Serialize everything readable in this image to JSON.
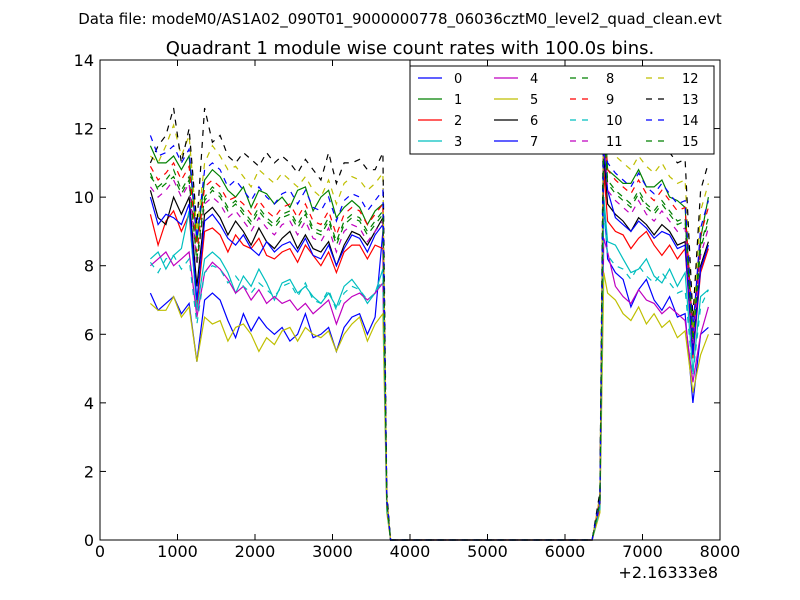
{
  "chart_data": {
    "type": "line",
    "suptitle": "Data file: modeM0/AS1A02_090T01_9000000778_06036cztM0_level2_quad_clean.evt",
    "title": "Quadrant 1 module wise count rates with 100.0s bins.",
    "xlabel": "",
    "ylabel": "",
    "xlim": [
      0,
      8000
    ],
    "ylim": [
      0,
      14
    ],
    "xticks": [
      0,
      1000,
      2000,
      3000,
      4000,
      5000,
      6000,
      7000,
      8000
    ],
    "yticks": [
      0,
      2,
      4,
      6,
      8,
      10,
      12,
      14
    ],
    "x_offset_label": "+2.16333e8",
    "legend_position": "top-right",
    "legend_columns": 4,
    "x": [
      650,
      750,
      850,
      950,
      1050,
      1150,
      1250,
      1350,
      1450,
      1550,
      1650,
      1750,
      1850,
      1950,
      2050,
      2150,
      2250,
      2350,
      2450,
      2550,
      2650,
      2750,
      2850,
      2950,
      3050,
      3150,
      3250,
      3350,
      3450,
      3550,
      3650,
      3700,
      3750,
      3800,
      3850,
      6350,
      6450,
      6500,
      6550,
      6650,
      6750,
      6850,
      6950,
      7050,
      7150,
      7250,
      7350,
      7450,
      7550,
      7650,
      7750,
      7850
    ],
    "series": [
      {
        "name": "0",
        "color": "#0000ff",
        "dash": "solid",
        "values": [
          7.2,
          6.7,
          6.9,
          7.1,
          6.6,
          6.9,
          5.2,
          7.0,
          7.2,
          7.0,
          6.4,
          5.9,
          6.6,
          6.1,
          6.5,
          6.2,
          6.0,
          6.2,
          5.8,
          6.0,
          6.6,
          5.9,
          6.0,
          6.2,
          5.5,
          6.2,
          6.5,
          6.6,
          6.0,
          6.5,
          9.0,
          1.0,
          0,
          0,
          0,
          0,
          1.0,
          10.0,
          8.2,
          7.8,
          7.6,
          6.8,
          7.3,
          7.6,
          7.0,
          6.7,
          7.1,
          6.5,
          6.6,
          4.0,
          6.0,
          6.2
        ]
      },
      {
        "name": "1",
        "color": "#008000",
        "dash": "solid",
        "values": [
          11.5,
          11.0,
          11.0,
          11.2,
          10.8,
          11.2,
          8.7,
          10.5,
          10.8,
          10.6,
          10.2,
          10.0,
          10.3,
          9.7,
          10.2,
          10.1,
          9.8,
          10.0,
          9.7,
          10.2,
          10.3,
          9.6,
          10.0,
          10.2,
          9.4,
          9.7,
          9.9,
          9.7,
          9.2,
          9.6,
          9.8,
          1.2,
          0,
          0,
          0,
          0,
          1.2,
          12.8,
          10.8,
          10.6,
          10.4,
          10.4,
          10.8,
          10.3,
          10.3,
          10.5,
          10.0,
          9.9,
          9.7,
          6.0,
          8.8,
          10.0
        ]
      },
      {
        "name": "2",
        "color": "#ff0000",
        "dash": "solid",
        "values": [
          9.5,
          8.6,
          9.3,
          9.6,
          9.0,
          9.5,
          6.8,
          9.0,
          9.1,
          8.9,
          8.4,
          8.9,
          8.6,
          8.5,
          8.8,
          8.3,
          8.2,
          8.4,
          8.5,
          8.1,
          8.6,
          8.3,
          8.0,
          8.4,
          7.8,
          8.4,
          8.6,
          8.6,
          8.2,
          8.6,
          8.5,
          1.0,
          0,
          0,
          0,
          0,
          1.0,
          10.8,
          9.3,
          9.0,
          8.9,
          8.5,
          8.8,
          9.0,
          8.6,
          8.3,
          8.6,
          8.2,
          8.5,
          5.3,
          7.8,
          8.5
        ]
      },
      {
        "name": "3",
        "color": "#00bfbf",
        "dash": "solid",
        "values": [
          8.2,
          8.4,
          7.9,
          8.3,
          8.5,
          9.6,
          6.7,
          8.2,
          8.4,
          8.2,
          7.8,
          7.2,
          7.7,
          7.4,
          7.9,
          7.5,
          7.0,
          7.5,
          7.6,
          7.2,
          7.4,
          7.1,
          6.9,
          7.2,
          6.8,
          7.4,
          7.6,
          7.3,
          6.9,
          7.2,
          7.9,
          1.0,
          0,
          0,
          0,
          0,
          1.0,
          10.0,
          8.7,
          8.6,
          8.2,
          7.8,
          7.9,
          8.2,
          7.7,
          7.5,
          7.9,
          7.4,
          7.8,
          4.9,
          7.1,
          7.3
        ]
      },
      {
        "name": "4",
        "color": "#bf00bf",
        "dash": "solid",
        "values": [
          8.0,
          8.2,
          8.4,
          8.0,
          8.2,
          8.4,
          6.5,
          7.8,
          8.1,
          7.9,
          7.6,
          7.2,
          7.4,
          7.0,
          7.3,
          6.9,
          7.1,
          6.9,
          7.0,
          6.7,
          6.9,
          6.6,
          6.8,
          7.0,
          6.3,
          6.9,
          7.1,
          7.2,
          7.0,
          7.2,
          7.5,
          0.9,
          0,
          0,
          0,
          0,
          0.9,
          8.8,
          8.4,
          7.4,
          7.1,
          6.9,
          7.3,
          7.0,
          6.9,
          6.6,
          6.8,
          6.6,
          6.4,
          4.6,
          6.0,
          6.8
        ]
      },
      {
        "name": "5",
        "color": "#bfbf00",
        "dash": "solid",
        "values": [
          6.9,
          6.7,
          6.7,
          7.1,
          6.5,
          6.8,
          5.2,
          6.5,
          6.3,
          6.4,
          5.8,
          6.2,
          6.3,
          6.0,
          5.5,
          5.9,
          5.7,
          6.1,
          6.2,
          5.8,
          6.2,
          6.0,
          5.9,
          6.1,
          5.5,
          6.0,
          6.3,
          6.5,
          5.8,
          6.3,
          6.6,
          0.8,
          0,
          0,
          0,
          0,
          0.8,
          7.8,
          7.2,
          7.0,
          6.6,
          6.4,
          6.8,
          6.3,
          6.6,
          6.2,
          6.4,
          5.9,
          6.1,
          4.3,
          5.4,
          6.0
        ]
      },
      {
        "name": "6",
        "color": "#000000",
        "dash": "solid",
        "values": [
          10.2,
          9.4,
          9.2,
          10.0,
          9.5,
          10.0,
          7.4,
          9.5,
          9.7,
          9.4,
          8.9,
          9.3,
          9.0,
          8.6,
          9.1,
          8.7,
          8.5,
          8.8,
          9.0,
          8.5,
          8.9,
          8.5,
          8.4,
          8.7,
          8.0,
          8.6,
          9.0,
          8.9,
          8.6,
          9.0,
          9.4,
          1.1,
          0,
          0,
          0,
          0,
          1.1,
          11.3,
          9.8,
          9.5,
          9.3,
          9.0,
          9.4,
          9.2,
          8.9,
          9.2,
          9.0,
          8.6,
          8.7,
          5.6,
          8.0,
          8.7
        ]
      },
      {
        "name": "7",
        "color": "#0000ff",
        "dash": "solid",
        "values": [
          10.0,
          9.2,
          9.5,
          9.4,
          9.2,
          9.8,
          7.0,
          9.3,
          9.5,
          9.2,
          8.8,
          8.6,
          8.9,
          8.5,
          8.3,
          8.7,
          8.4,
          8.6,
          8.7,
          8.4,
          8.8,
          8.3,
          8.2,
          8.6,
          8.0,
          8.5,
          8.9,
          8.8,
          8.4,
          8.9,
          9.2,
          1.1,
          0,
          0,
          0,
          0,
          1.1,
          11.5,
          10.2,
          9.4,
          9.2,
          9.0,
          9.3,
          9.1,
          8.8,
          9.0,
          8.9,
          8.5,
          8.6,
          5.4,
          7.9,
          8.6
        ]
      },
      {
        "name": "8",
        "color": "#008000",
        "dash": "dashed",
        "values": [
          10.6,
          10.3,
          10.5,
          10.8,
          10.2,
          10.6,
          8.2,
          10.0,
          10.3,
          10.1,
          9.7,
          9.9,
          9.6,
          9.3,
          9.7,
          9.4,
          9.2,
          9.5,
          9.6,
          9.2,
          9.6,
          9.1,
          9.0,
          9.4,
          8.7,
          9.3,
          9.5,
          9.4,
          9.0,
          9.3,
          9.6,
          1.2,
          0,
          0,
          0,
          0,
          1.2,
          12.2,
          10.5,
          10.2,
          10.0,
          9.8,
          10.2,
          9.8,
          9.6,
          9.9,
          9.6,
          9.3,
          9.4,
          5.8,
          8.6,
          9.4
        ]
      },
      {
        "name": "9",
        "color": "#ff0000",
        "dash": "dashed",
        "values": [
          10.9,
          10.5,
          10.7,
          11.0,
          10.5,
          10.9,
          8.4,
          10.3,
          10.5,
          10.3,
          9.9,
          10.0,
          9.8,
          9.5,
          9.9,
          9.6,
          9.4,
          9.7,
          9.8,
          9.4,
          9.8,
          9.3,
          9.2,
          9.6,
          8.9,
          9.5,
          9.7,
          9.6,
          9.2,
          9.5,
          9.8,
          1.2,
          0,
          0,
          0,
          0,
          1.2,
          12.5,
          10.8,
          10.5,
          10.3,
          10.1,
          10.5,
          10.1,
          9.9,
          10.2,
          9.9,
          9.6,
          9.7,
          6.0,
          8.9,
          9.7
        ]
      },
      {
        "name": "10",
        "color": "#00bfbf",
        "dash": "dashed",
        "values": [
          8.1,
          7.8,
          8.2,
          8.3,
          7.9,
          8.2,
          6.3,
          7.8,
          8.0,
          7.9,
          7.5,
          7.7,
          7.4,
          7.2,
          7.5,
          7.3,
          7.1,
          7.4,
          7.5,
          7.1,
          7.5,
          7.0,
          6.9,
          7.3,
          6.7,
          7.2,
          7.4,
          7.3,
          7.0,
          7.2,
          7.6,
          0.9,
          0,
          0,
          0,
          0,
          0.9,
          9.6,
          8.3,
          8.0,
          7.9,
          7.6,
          8.0,
          7.7,
          7.5,
          7.8,
          7.5,
          7.2,
          7.3,
          4.8,
          6.8,
          7.3
        ]
      },
      {
        "name": "11",
        "color": "#bf00bf",
        "dash": "dashed",
        "values": [
          10.3,
          10.0,
          10.2,
          10.5,
          10.0,
          10.4,
          8.0,
          9.8,
          10.0,
          9.8,
          9.4,
          9.6,
          9.3,
          9.0,
          9.4,
          9.1,
          8.9,
          9.2,
          9.3,
          8.9,
          9.3,
          8.8,
          8.7,
          9.1,
          8.4,
          9.0,
          9.2,
          9.1,
          8.7,
          9.0,
          9.3,
          1.1,
          0,
          0,
          0,
          0,
          1.1,
          11.8,
          10.2,
          9.9,
          9.7,
          9.5,
          9.9,
          9.5,
          9.3,
          9.6,
          9.3,
          9.0,
          9.1,
          5.7,
          8.3,
          9.1
        ]
      },
      {
        "name": "12",
        "color": "#bfbf00",
        "dash": "dashed",
        "values": [
          11.2,
          11.0,
          11.5,
          12.1,
          11.2,
          11.8,
          9.0,
          11.0,
          11.5,
          11.2,
          10.8,
          10.9,
          10.6,
          10.3,
          10.8,
          10.6,
          10.4,
          10.7,
          10.5,
          10.3,
          10.6,
          10.2,
          10.0,
          10.5,
          9.8,
          10.4,
          10.6,
          10.5,
          10.2,
          10.4,
          10.7,
          1.3,
          0,
          0,
          0,
          0,
          1.3,
          13.2,
          11.6,
          11.2,
          11.0,
          10.8,
          11.2,
          10.9,
          10.7,
          11.0,
          10.6,
          10.4,
          10.5,
          6.2,
          9.6,
          10.4
        ]
      },
      {
        "name": "13",
        "color": "#000000",
        "dash": "dashed",
        "values": [
          11.0,
          11.5,
          11.8,
          12.6,
          11.0,
          12.0,
          9.2,
          12.6,
          11.6,
          11.8,
          11.2,
          11.0,
          11.3,
          11.1,
          10.9,
          11.3,
          11.0,
          11.2,
          11.0,
          10.7,
          11.1,
          10.8,
          10.5,
          11.3,
          10.4,
          11.0,
          11.0,
          11.1,
          10.8,
          10.8,
          11.3,
          1.4,
          0,
          0,
          0,
          0,
          1.4,
          13.8,
          12.0,
          11.8,
          11.7,
          11.5,
          11.8,
          11.5,
          11.3,
          11.6,
          11.3,
          11.0,
          11.1,
          6.5,
          10.2,
          11.0
        ]
      },
      {
        "name": "14",
        "color": "#0000ff",
        "dash": "dashed",
        "values": [
          11.8,
          11.2,
          11.3,
          11.5,
          11.0,
          11.4,
          8.8,
          10.8,
          11.0,
          10.8,
          10.3,
          10.5,
          10.2,
          9.9,
          10.3,
          10.0,
          9.8,
          10.1,
          10.2,
          9.8,
          10.2,
          9.7,
          9.6,
          10.0,
          9.3,
          9.9,
          10.1,
          10.0,
          9.6,
          9.9,
          10.2,
          1.2,
          0,
          0,
          0,
          0,
          1.2,
          12.7,
          11.0,
          10.7,
          10.5,
          10.3,
          10.7,
          10.3,
          10.1,
          10.4,
          10.1,
          9.8,
          9.9,
          6.1,
          9.1,
          9.9
        ]
      },
      {
        "name": "15",
        "color": "#008000",
        "dash": "dashed",
        "values": [
          10.7,
          10.2,
          10.4,
          10.6,
          10.1,
          10.5,
          8.1,
          9.9,
          10.2,
          10.0,
          9.6,
          9.8,
          9.5,
          9.2,
          9.6,
          9.3,
          9.1,
          9.4,
          9.5,
          9.1,
          9.5,
          9.0,
          8.9,
          9.3,
          8.6,
          9.2,
          9.4,
          9.3,
          8.9,
          9.2,
          9.5,
          1.1,
          0,
          0,
          0,
          0,
          1.1,
          12.0,
          10.4,
          10.1,
          9.9,
          9.7,
          10.1,
          9.7,
          9.5,
          9.8,
          9.5,
          9.2,
          9.3,
          5.8,
          8.5,
          9.3
        ]
      }
    ]
  }
}
